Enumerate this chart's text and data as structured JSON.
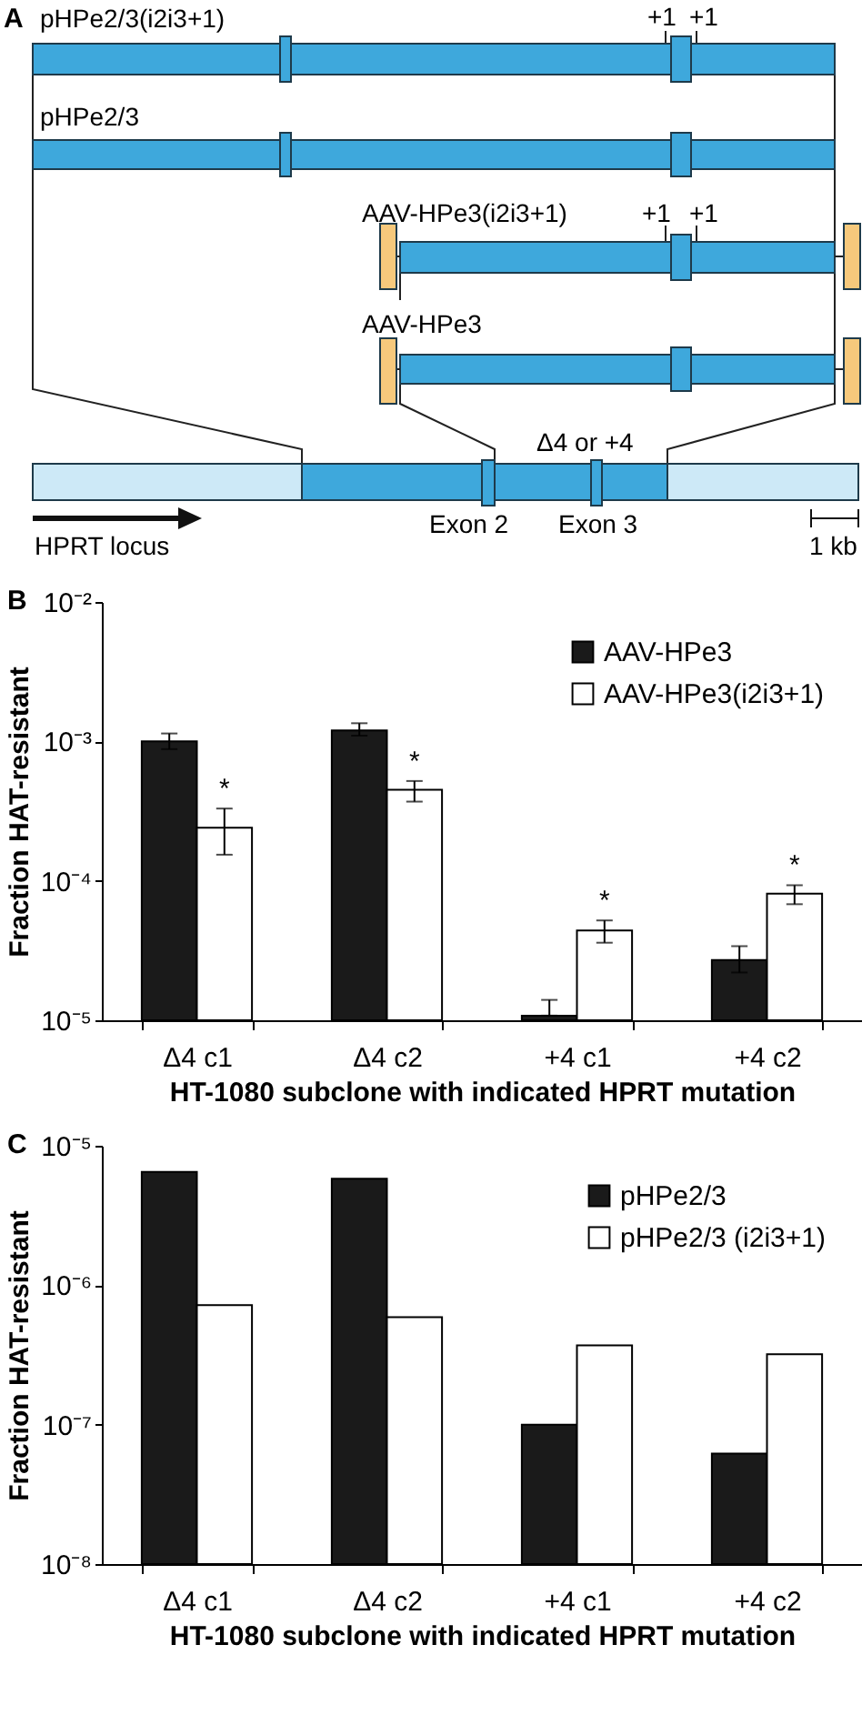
{
  "chart_data": [
    {
      "type": "other",
      "title": "A",
      "annotations": [
        "pHPe2/3(i2i3+1)",
        "+1",
        "+1",
        "pHPe2/3",
        "AAV-HPe3(i2i3+1)",
        "+1",
        "+1",
        "AAV-HPe3",
        "Δ4 or +4",
        "Exon 2",
        "Exon 3",
        "HPRT locus",
        "1 kb"
      ]
    },
    {
      "type": "bar",
      "title": "B",
      "categories": [
        "Δ4 c1",
        "Δ4 c2",
        "+4 c1",
        "+4 c2"
      ],
      "xlabel": "HT-1080 subclone with indicated HPRT mutation",
      "ylabel": "Fraction HAT-resistant",
      "log": true,
      "ylim": [
        1e-05,
        0.01
      ],
      "yticks": [
        {
          "value": 1e-05,
          "label": "10⁻⁵"
        },
        {
          "value": 0.0001,
          "label": "10⁻⁴"
        },
        {
          "value": 0.001,
          "label": "10⁻³"
        },
        {
          "value": 0.01,
          "label": "10⁻²"
        }
      ],
      "legend": "top right",
      "series": [
        {
          "name": "AAV-HPe3",
          "color": "#1a1a1a",
          "values": [
            0.001,
            0.0012,
            1.08e-05,
            2.7e-05
          ],
          "errors": [
            [
              0.00088,
              0.00114
            ],
            [
              0.0011,
              0.00135
            ],
            [
              1.08e-05,
              1.4e-05
            ],
            [
              2.2e-05,
              3.4e-05
            ]
          ]
        },
        {
          "name": "AAV-HPe3(i2i3+1)",
          "color": "#ffffff",
          "values": [
            0.00024,
            0.00045,
            4.4e-05,
            8.1e-05
          ],
          "errors": [
            [
              0.000154,
              0.00033
            ],
            [
              0.00037,
              0.00052
            ],
            [
              3.6e-05,
              5.2e-05
            ],
            [
              6.8e-05,
              9.3e-05
            ]
          ]
        }
      ],
      "annotations": [
        {
          "text": "*",
          "x": "Δ4 c1",
          "y": 0.00024
        },
        {
          "text": "*",
          "x": "Δ4 c2",
          "y": 0.00045
        },
        {
          "text": "*",
          "x": "+4 c1",
          "y": 4.4e-05
        },
        {
          "text": "*",
          "x": "+4 c2",
          "y": 8.1e-05
        }
      ]
    },
    {
      "type": "bar",
      "title": "C",
      "categories": [
        "Δ4 c1",
        "Δ4 c2",
        "+4 c1",
        "+4 c2"
      ],
      "xlabel": "HT-1080 subclone with indicated HPRT mutation",
      "ylabel": "Fraction HAT-resistant",
      "log": true,
      "ylim": [
        1e-08,
        1e-05
      ],
      "yticks": [
        {
          "value": 1e-08,
          "label": "10⁻⁸"
        },
        {
          "value": 1e-07,
          "label": "10⁻⁷"
        },
        {
          "value": 1e-06,
          "label": "10⁻⁶"
        },
        {
          "value": 1e-05,
          "label": "10⁻⁵"
        }
      ],
      "legend": "top right",
      "series": [
        {
          "name": "pHPe2/3",
          "color": "#1a1a1a",
          "values": [
            6.5e-06,
            5.8e-06,
            1e-07,
            6.2e-08
          ]
        },
        {
          "name": "pHPe2/3 (i2i3+1)",
          "color": "#ffffff",
          "values": [
            7.2e-07,
            5.9e-07,
            3.7e-07,
            3.2e-07
          ]
        }
      ]
    }
  ]
}
